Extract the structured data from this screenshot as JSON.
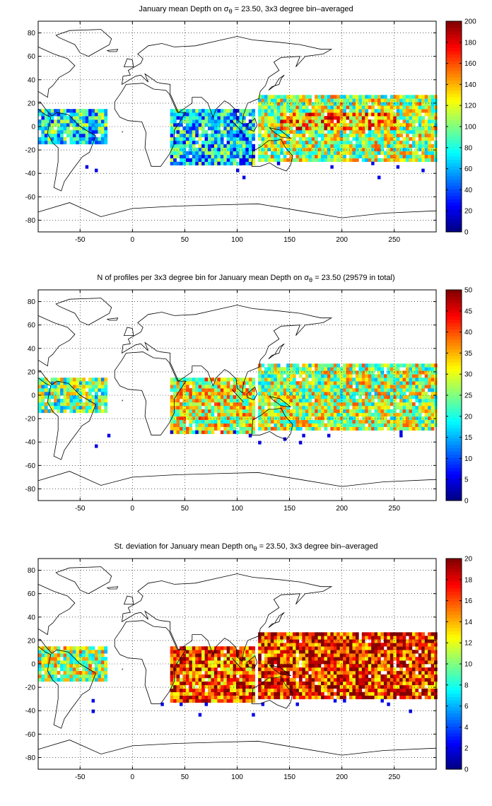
{
  "chart_data": [
    {
      "type": "heatmap",
      "title": "January mean Depth on σθ = 23.50, 3x3 degree bin–averaged",
      "title_parts": {
        "before": "January mean Depth on σ",
        "sub": "θ",
        "after": " = 23.50, 3x3 degree bin–averaged"
      },
      "xlabel": "",
      "ylabel": "",
      "xlim": [
        -90,
        290
      ],
      "ylim": [
        -90,
        90
      ],
      "xticks": [
        -50,
        0,
        50,
        100,
        150,
        200,
        250
      ],
      "yticks": [
        -80,
        -60,
        -40,
        -20,
        0,
        20,
        40,
        60,
        80
      ],
      "grid": true,
      "colorbar": {
        "min": 0,
        "max": 200,
        "ticks": [
          0,
          20,
          40,
          60,
          80,
          100,
          120,
          140,
          160,
          180,
          200
        ],
        "colormap": "jet"
      },
      "regions": [
        {
          "name": "Atlantic",
          "lon": [
            -90,
            -25
          ],
          "lat": [
            -15,
            15
          ],
          "level": 0.38
        },
        {
          "name": "Indian Ocean",
          "lon": [
            35,
            115
          ],
          "lat": [
            -35,
            15
          ],
          "level": 0.35
        },
        {
          "name": "Pacific",
          "lon": [
            120,
            290
          ],
          "lat": [
            -30,
            25
          ],
          "level": 0.55
        },
        {
          "name": "Pacific core",
          "lon": [
            140,
            250
          ],
          "lat": [
            -5,
            10
          ],
          "level": 0.72
        }
      ]
    },
    {
      "type": "heatmap",
      "title": "N of profiles per 3x3 degree bin for January mean Depth on σθ = 23.50 (29579 in total)",
      "title_parts": {
        "before": "N of profiles per 3x3 degree bin for January mean Depth on σ",
        "sub": "θ",
        "after": " = 23.50 (29579 in total)"
      },
      "xlabel": "",
      "ylabel": "",
      "xlim": [
        -90,
        290
      ],
      "ylim": [
        -90,
        90
      ],
      "xticks": [
        -50,
        0,
        50,
        100,
        150,
        200,
        250
      ],
      "yticks": [
        -80,
        -60,
        -40,
        -20,
        0,
        20,
        40,
        60,
        80
      ],
      "grid": true,
      "total_profiles": 29579,
      "colorbar": {
        "min": 0,
        "max": 50,
        "ticks": [
          0,
          5,
          10,
          15,
          20,
          25,
          30,
          35,
          40,
          45,
          50
        ],
        "colormap": "jet"
      },
      "regions": [
        {
          "name": "Atlantic",
          "lon": [
            -90,
            -25
          ],
          "lat": [
            -15,
            15
          ],
          "level": 0.5
        },
        {
          "name": "Indian Ocean",
          "lon": [
            35,
            115
          ],
          "lat": [
            -35,
            15
          ],
          "level": 0.6
        },
        {
          "name": "Pacific",
          "lon": [
            120,
            290
          ],
          "lat": [
            -30,
            25
          ],
          "level": 0.55
        }
      ]
    },
    {
      "type": "heatmap",
      "title": "St. deviation for January mean Depth onσθ = 23.50, 3x3 degree bin–averaged",
      "title_parts": {
        "before": "St. deviation for January mean Depth on",
        "sub": "θ",
        "after": " = 23.50, 3x3 degree bin–averaged"
      },
      "xlabel": "",
      "ylabel": "",
      "xlim": [
        -90,
        290
      ],
      "ylim": [
        -90,
        90
      ],
      "xticks": [
        -50,
        0,
        50,
        100,
        150,
        200,
        250
      ],
      "yticks": [
        -80,
        -60,
        -40,
        -20,
        0,
        20,
        40,
        60,
        80
      ],
      "grid": true,
      "colorbar": {
        "min": 0,
        "max": 20,
        "ticks": [
          0,
          2,
          4,
          6,
          8,
          10,
          12,
          14,
          16,
          18,
          20
        ],
        "colormap": "jet"
      },
      "regions": [
        {
          "name": "Atlantic",
          "lon": [
            -90,
            -25
          ],
          "lat": [
            -15,
            15
          ],
          "level": 0.55
        },
        {
          "name": "Indian Ocean",
          "lon": [
            35,
            115
          ],
          "lat": [
            -35,
            15
          ],
          "level": 0.8
        },
        {
          "name": "Pacific",
          "lon": [
            120,
            290
          ],
          "lat": [
            -30,
            25
          ],
          "level": 0.85
        }
      ]
    }
  ]
}
